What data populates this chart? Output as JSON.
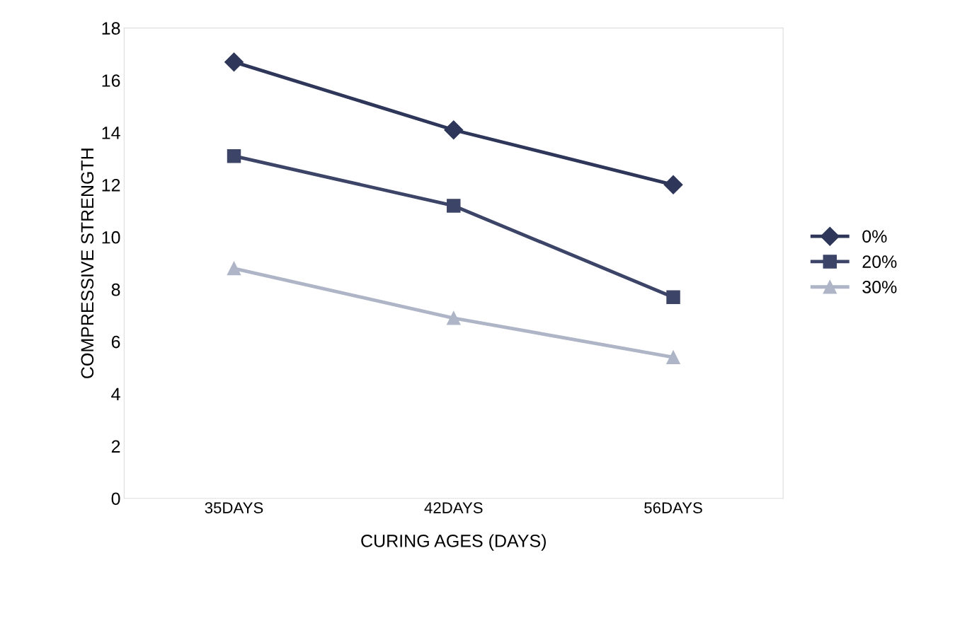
{
  "chart_data": {
    "type": "line",
    "xlabel": "CURING AGES (DAYS)",
    "ylabel": "COMPRESSIVE STRENGTH",
    "categories": [
      "35DAYS",
      "42DAYS",
      "56DAYS"
    ],
    "series": [
      {
        "name": "0%",
        "color": "#2e3759",
        "marker": "diamond",
        "values": [
          16.7,
          14.1,
          12.0
        ]
      },
      {
        "name": "20%",
        "color": "#3c4467",
        "marker": "square",
        "values": [
          13.1,
          11.2,
          7.7
        ]
      },
      {
        "name": "30%",
        "color": "#aeb5c6",
        "marker": "triangle",
        "values": [
          8.8,
          6.9,
          5.4
        ]
      }
    ],
    "ylim": [
      0,
      18
    ],
    "yticks": [
      0,
      2,
      4,
      6,
      8,
      10,
      12,
      14,
      16,
      18
    ],
    "legend": "right",
    "line_style": "solid"
  }
}
